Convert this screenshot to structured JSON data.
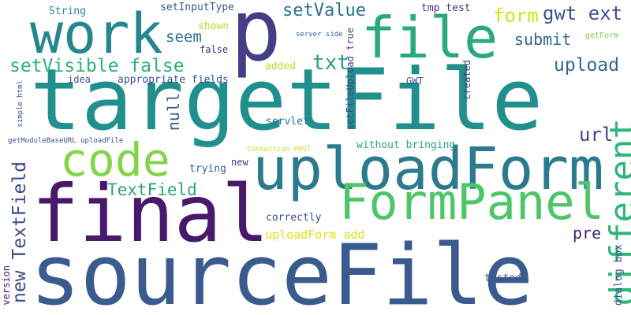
{
  "word_cloud": {
    "words": [
      {
        "text": "sourceFile",
        "color": "#3b5b8f"
      },
      {
        "text": "targetFile",
        "color": "#21908c"
      },
      {
        "text": "final",
        "color": "#48186a"
      },
      {
        "text": "uploadForm",
        "color": "#2b7a8e"
      },
      {
        "text": "FormPanel",
        "color": "#4fc56a"
      },
      {
        "text": "work",
        "color": "#24878e"
      },
      {
        "text": "p",
        "color": "#433e85"
      },
      {
        "text": "file",
        "color": "#2aa97c"
      },
      {
        "text": "code",
        "color": "#84d44b"
      },
      {
        "text": "different",
        "color": "#31b57b"
      },
      {
        "text": "setVisible false",
        "color": "#2db27d"
      },
      {
        "text": "setValue",
        "color": "#2c738e"
      },
      {
        "text": "form",
        "color": "#d5e21a"
      },
      {
        "text": "gwt ext",
        "color": "#3b528b"
      },
      {
        "text": "upload",
        "color": "#30698e"
      },
      {
        "text": "submit",
        "color": "#31668e"
      },
      {
        "text": "seem",
        "color": "#2d708e"
      },
      {
        "text": "txt",
        "color": "#2a9c81"
      },
      {
        "text": "TextField",
        "color": "#2ea37e"
      },
      {
        "text": "url",
        "color": "#3f4788"
      },
      {
        "text": "null",
        "color": "#38588c"
      },
      {
        "text": "pre",
        "color": "#482475"
      },
      {
        "text": "new TextField",
        "color": "#3e4a89"
      },
      {
        "text": "uploadForm add",
        "color": "#dde318"
      },
      {
        "text": "setFileUpload true",
        "color": "#404387"
      },
      {
        "text": "String",
        "color": "#25838e"
      },
      {
        "text": "setInputType",
        "color": "#38588c"
      },
      {
        "text": "tmp test",
        "color": "#453781"
      },
      {
        "text": "shown",
        "color": "#b5de2b"
      },
      {
        "text": "false",
        "color": "#46327e"
      },
      {
        "text": "added",
        "color": "#b8de29"
      },
      {
        "text": "idea",
        "color": "#3e4c8a"
      },
      {
        "text": "appropriate fields",
        "color": "#3b518b"
      },
      {
        "text": "server side",
        "color": "#33628d"
      },
      {
        "text": "getForm",
        "color": "#7ad151"
      },
      {
        "text": "GWT",
        "color": "#3a548c"
      },
      {
        "text": "created",
        "color": "#423f85"
      },
      {
        "text": "servlet",
        "color": "#2d718e"
      },
      {
        "text": "Connection POST",
        "color": "#c8e020"
      },
      {
        "text": "without bringing",
        "color": "#22a884"
      },
      {
        "text": "getModuleBaseURL uploadFile",
        "color": "#3d4e8a"
      },
      {
        "text": "simple html",
        "color": "#3e4a89"
      },
      {
        "text": "trying",
        "color": "#31688e"
      },
      {
        "text": "new",
        "color": "#453882"
      },
      {
        "text": "correctly",
        "color": "#3f4889"
      },
      {
        "text": "tested",
        "color": "#38588c"
      },
      {
        "text": "version",
        "color": "#48186a"
      },
      {
        "text": "dialog box",
        "color": "#38598c"
      }
    ]
  }
}
